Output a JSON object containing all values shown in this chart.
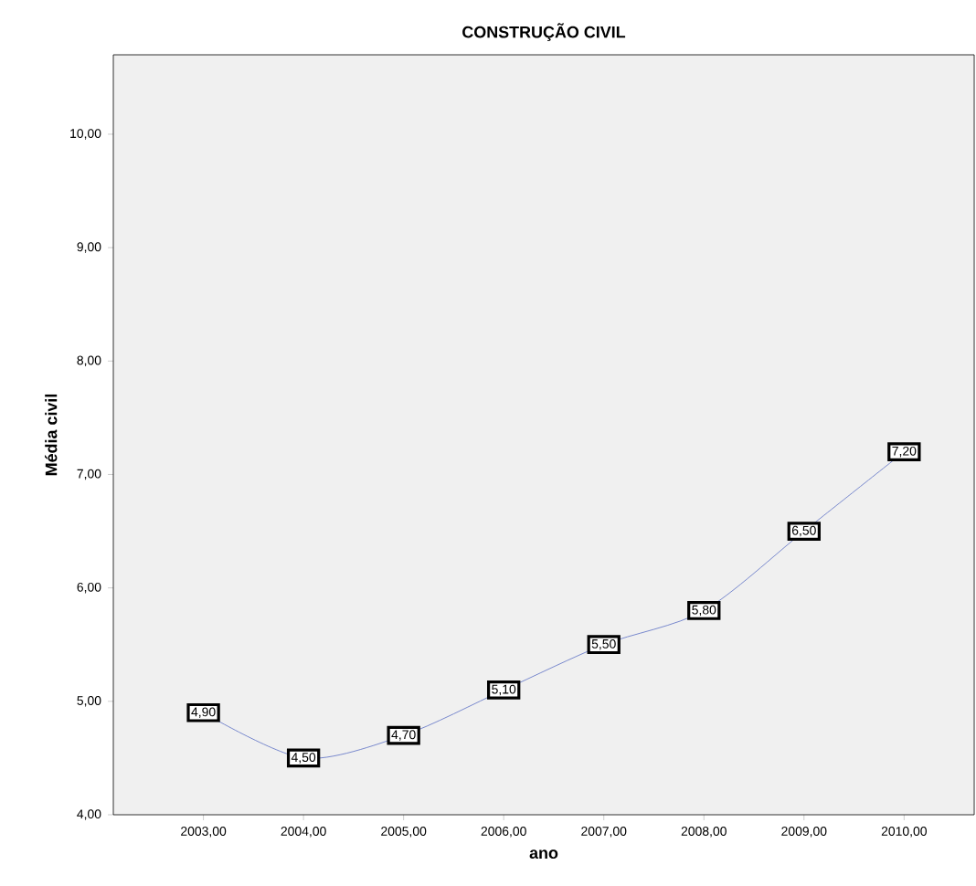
{
  "chart_data": {
    "type": "line",
    "title": "CONSTRUÇÃO CIVIL",
    "xlabel": "ano",
    "ylabel": "Média civil",
    "x": [
      2003,
      2004,
      2005,
      2006,
      2007,
      2008,
      2009,
      2010
    ],
    "series": [
      {
        "color": "#5b6fc4",
        "values": [
          4.9,
          4.5,
          4.7,
          5.1,
          5.5,
          5.8,
          6.5,
          7.2
        ],
        "value_labels": [
          "4,90",
          "4,50",
          "4,70",
          "5,10",
          "5,50",
          "5,80",
          "6,50",
          "7,20"
        ]
      }
    ],
    "xlim": [
      2002.1,
      2010.7
    ],
    "ylim": [
      4,
      10.7
    ],
    "xticks": [
      {
        "value": 2003,
        "label": "2003,00"
      },
      {
        "value": 2004,
        "label": "2004,00"
      },
      {
        "value": 2005,
        "label": "2005,00"
      },
      {
        "value": 2006,
        "label": "2006,00"
      },
      {
        "value": 2007,
        "label": "2007,00"
      },
      {
        "value": 2008,
        "label": "2008,00"
      },
      {
        "value": 2009,
        "label": "2009,00"
      },
      {
        "value": 2010,
        "label": "2010,00"
      }
    ],
    "yticks": [
      {
        "value": 4,
        "label": "4,00"
      },
      {
        "value": 5,
        "label": "5,00"
      },
      {
        "value": 6,
        "label": "6,00"
      },
      {
        "value": 7,
        "label": "7,00"
      },
      {
        "value": 8,
        "label": "8,00"
      },
      {
        "value": 9,
        "label": "9,00"
      },
      {
        "value": 10,
        "label": "10,00"
      }
    ],
    "grid": false,
    "marker": "square",
    "line_style": "solid"
  }
}
